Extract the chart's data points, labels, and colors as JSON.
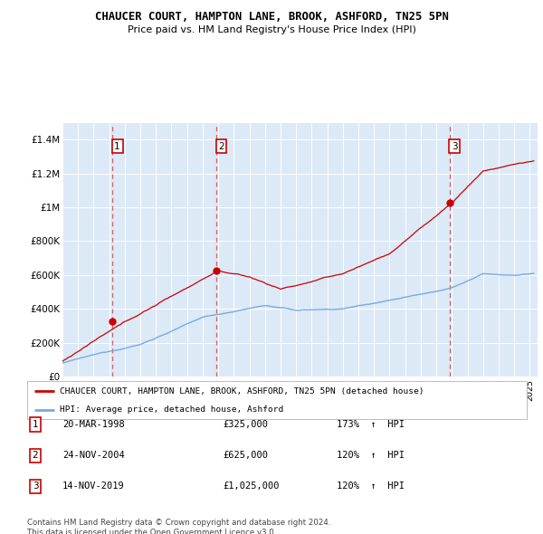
{
  "title": "CHAUCER COURT, HAMPTON LANE, BROOK, ASHFORD, TN25 5PN",
  "subtitle": "Price paid vs. HM Land Registry's House Price Index (HPI)",
  "property_color": "#cc0000",
  "hpi_color": "#7aaadd",
  "bg_color": "#dce9f7",
  "ylim": [
    0,
    1500000
  ],
  "yticks": [
    0,
    200000,
    400000,
    600000,
    800000,
    1000000,
    1200000,
    1400000
  ],
  "ytick_labels": [
    "£0",
    "£200K",
    "£400K",
    "£600K",
    "£800K",
    "£1M",
    "£1.2M",
    "£1.4M"
  ],
  "xmin": 1995,
  "xmax": 2025.5,
  "sales": [
    {
      "label": "1",
      "date": "20-MAR-1998",
      "price": 325000,
      "year": 1998.22,
      "hpi_pct": "173%",
      "arrow": "↑"
    },
    {
      "label": "2",
      "date": "24-NOV-2004",
      "price": 625000,
      "year": 2004.9,
      "hpi_pct": "120%",
      "arrow": "↑"
    },
    {
      "label": "3",
      "date": "14-NOV-2019",
      "price": 1025000,
      "year": 2019.87,
      "hpi_pct": "120%",
      "arrow": "↑"
    }
  ],
  "legend_property": "CHAUCER COURT, HAMPTON LANE, BROOK, ASHFORD, TN25 5PN (detached house)",
  "legend_hpi": "HPI: Average price, detached house, Ashford",
  "footnote1": "Contains HM Land Registry data © Crown copyright and database right 2024.",
  "footnote2": "This data is licensed under the Open Government Licence v3.0."
}
